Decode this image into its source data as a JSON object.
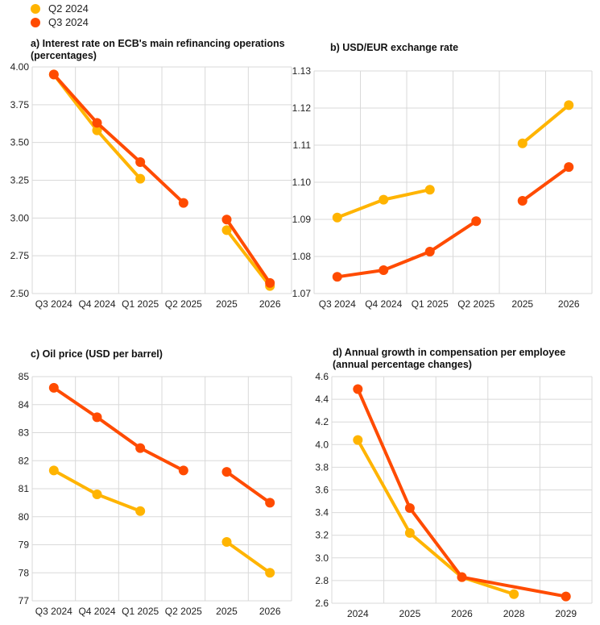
{
  "legend": [
    {
      "label": "Q2 2024",
      "color": "#FFB400"
    },
    {
      "label": "Q3 2024",
      "color": "#FF4B00"
    }
  ],
  "chart_data": [
    {
      "type": "line",
      "title": "a) Interest rate on ECB's main refinancing operations",
      "subtitle": "(percentages)",
      "categories": [
        "Q3 2024",
        "Q4 2024",
        "Q1 2025",
        "Q2 2025",
        "2025",
        "2026"
      ],
      "ylim": [
        2.5,
        4.0
      ],
      "yticks": [
        "2.50",
        "2.75",
        "3.00",
        "3.25",
        "3.50",
        "3.75",
        "4.00"
      ],
      "gap_after_index": 3,
      "series": [
        {
          "name": "Q2 2024",
          "values": [
            3.95,
            3.58,
            3.26,
            null,
            2.92,
            2.55
          ]
        },
        {
          "name": "Q3 2024",
          "values": [
            3.95,
            3.63,
            3.37,
            3.1,
            2.99,
            2.57
          ]
        }
      ]
    },
    {
      "type": "line",
      "title": "b) USD/EUR exchange rate",
      "subtitle": "",
      "categories": [
        "Q3 2024",
        "Q4 2024",
        "Q1 2025",
        "Q2 2025",
        "2025",
        "2026"
      ],
      "ylim": [
        1.07,
        1.13
      ],
      "yticks": [
        "1.07",
        "1.08",
        "1.09",
        "1.10",
        "1.11",
        "1.12",
        "1.13"
      ],
      "gap_after_index": 3,
      "series": [
        {
          "name": "Q2 2024",
          "values": [
            1.0905,
            1.0953,
            1.098,
            null,
            1.1105,
            1.1208
          ]
        },
        {
          "name": "Q3 2024",
          "values": [
            1.0745,
            1.0763,
            1.0813,
            1.0895,
            1.095,
            1.1041
          ]
        }
      ]
    },
    {
      "type": "line",
      "title": "c) Oil price (USD per barrel)",
      "subtitle": "",
      "categories": [
        "Q3 2024",
        "Q4 2024",
        "Q1 2025",
        "Q2 2025",
        "2025",
        "2026"
      ],
      "ylim": [
        77,
        85
      ],
      "yticks": [
        "77",
        "78",
        "79",
        "80",
        "81",
        "82",
        "83",
        "84",
        "85"
      ],
      "gap_after_index": 3,
      "series": [
        {
          "name": "Q2 2024",
          "values": [
            81.65,
            80.8,
            80.2,
            null,
            79.1,
            78.0
          ]
        },
        {
          "name": "Q3 2024",
          "values": [
            84.6,
            83.55,
            82.45,
            81.65,
            81.6,
            80.5
          ]
        }
      ]
    },
    {
      "type": "line",
      "title": "d) Annual growth in compensation per employee",
      "subtitle": "(annual percentage changes)",
      "categories": [
        "2024",
        "2025",
        "2026",
        "2028",
        "2029"
      ],
      "ylim": [
        2.6,
        4.6
      ],
      "yticks": [
        "2.6",
        "2.8",
        "3.0",
        "3.2",
        "3.4",
        "3.6",
        "3.8",
        "4.0",
        "4.2",
        "4.4",
        "4.6"
      ],
      "gap_after_index": null,
      "series": [
        {
          "name": "Q2 2024",
          "values": [
            4.04,
            3.22,
            2.83,
            2.68,
            null
          ]
        },
        {
          "name": "Q3 2024",
          "values": [
            4.49,
            3.44,
            2.83,
            null,
            2.66
          ]
        }
      ]
    }
  ]
}
